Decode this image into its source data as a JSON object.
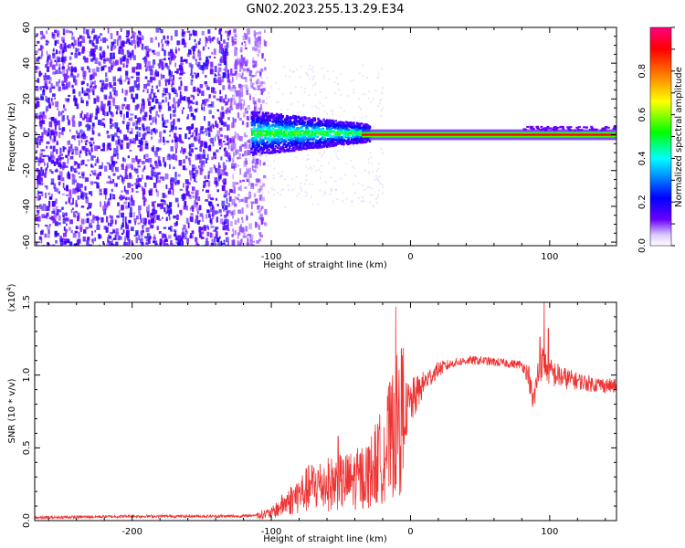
{
  "chart_data": [
    {
      "type": "heatmap",
      "title": "GN02.2023.255.13.29.E34",
      "xlabel": "Height of straight line (km)",
      "ylabel": "Frequency (Hz)",
      "xlim": [
        -270,
        148
      ],
      "ylim": [
        -62,
        60
      ],
      "xticks": [
        -200,
        -100,
        0,
        100
      ],
      "xtick_labels": [
        "-200",
        "-100",
        "0",
        "100"
      ],
      "yticks": [
        -60,
        -40,
        -20,
        0,
        20,
        40,
        60
      ],
      "ytick_labels": [
        "-60",
        "-40",
        "-20",
        "0",
        "20",
        "40",
        "60"
      ],
      "colorbar": {
        "label": "Normalized spectral amplitude",
        "range": [
          0,
          1
        ],
        "ticks": [
          0.0,
          0.2,
          0.4,
          0.6,
          0.8
        ],
        "tick_labels": [
          "0.0",
          "0.2",
          "0.4",
          "0.6",
          "0.8"
        ],
        "colors": [
          "#ffffff",
          "#6a00ff",
          "#0000ff",
          "#00ffff",
          "#00ff00",
          "#ffff00",
          "#ff0000",
          "#ff0080"
        ]
      },
      "regions": [
        {
          "x_range": [
            -270,
            -115
          ],
          "f_range": [
            -62,
            60
          ],
          "amplitude": 0.08,
          "description": "broadband noise"
        },
        {
          "x_range": [
            -115,
            -30
          ],
          "f_range": [
            -12,
            10
          ],
          "amplitude": 0.35,
          "description": "signal band"
        },
        {
          "x_range": [
            -30,
            148
          ],
          "f_range": [
            -1.5,
            1.5
          ],
          "amplitude": 0.9,
          "description": "narrow carrier line"
        }
      ],
      "grid": false
    },
    {
      "type": "line",
      "xlabel": "Height of straight line (km)",
      "ylabel": "SNR (10 * v/v)",
      "y_multiplier_label": "(x10",
      "y_multiplier_exp": "4",
      "y_multiplier_close": ")",
      "xlim": [
        -270,
        148
      ],
      "ylim": [
        0,
        1.5
      ],
      "xticks": [
        -200,
        -100,
        0,
        100
      ],
      "xtick_labels": [
        "-200",
        "-100",
        "0",
        "100"
      ],
      "yticks": [
        0,
        0.5,
        1.0,
        1.5
      ],
      "ytick_labels": [
        "0.0",
        "0.5",
        "1.0",
        "1.5"
      ],
      "series": [
        {
          "color": "#ee3333",
          "envelope": {
            "x": [
              -270,
              -200,
              -150,
              -120,
              -100,
              -90,
              -80,
              -70,
              -60,
              -50,
              -40,
              -30,
              -20,
              -15,
              -10,
              0,
              10,
              20,
              30,
              40,
              50,
              60,
              70,
              80,
              85,
              88,
              92,
              95,
              100,
              110,
              120,
              130,
              140,
              148
            ],
            "y": [
              0.02,
              0.03,
              0.03,
              0.03,
              0.05,
              0.12,
              0.18,
              0.24,
              0.25,
              0.26,
              0.28,
              0.32,
              0.45,
              0.55,
              0.65,
              0.8,
              0.95,
              1.04,
              1.08,
              1.1,
              1.1,
              1.09,
              1.08,
              1.07,
              1.0,
              0.8,
              1.02,
              1.1,
              1.02,
              0.98,
              0.96,
              0.94,
              0.93,
              0.92
            ]
          },
          "noise": {
            "x": [
              -270,
              -110,
              -100,
              -80,
              -60,
              -40,
              -25,
              -15,
              -5,
              10,
              30,
              80,
              90,
              100,
              120,
              148
            ],
            "amp": [
              0.01,
              0.01,
              0.05,
              0.1,
              0.2,
              0.22,
              0.3,
              0.3,
              0.22,
              0.08,
              0.03,
              0.03,
              0.12,
              0.1,
              0.06,
              0.05
            ]
          },
          "spikes": [
            {
              "x": -10.5,
              "y": 1.47
            },
            {
              "x": -52,
              "y": 0.58
            },
            {
              "x": -16,
              "y": 0.85
            },
            {
              "x": 96,
              "y": 1.52
            },
            {
              "x": 93,
              "y": 1.26
            },
            {
              "x": 99,
              "y": 1.32
            }
          ]
        }
      ],
      "grid": false
    }
  ]
}
